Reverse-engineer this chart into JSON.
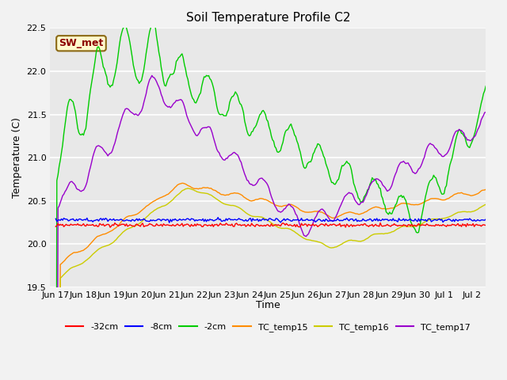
{
  "title": "Soil Temperature Profile C2",
  "xlabel": "Time",
  "ylabel": "Temperature (C)",
  "ylim": [
    19.5,
    22.5
  ],
  "annotation_text": "SW_met",
  "annotation_color": "#8B0000",
  "annotation_bg": "#FFFACD",
  "annotation_border": "#8B6914",
  "colors": {
    "-32cm": "#FF0000",
    "-8cm": "#0000FF",
    "-2cm": "#00CC00",
    "TC_temp15": "#FF8C00",
    "TC_temp16": "#CCCC00",
    "TC_temp17": "#9900CC"
  },
  "tick_labels": [
    "Jun 17",
    "Jun 18",
    "Jun 19",
    "Jun 20",
    "Jun 21",
    "Jun 22",
    "Jun 23",
    "Jun 24",
    "Jun 25",
    "Jun 26",
    "Jun 27",
    "Jun 28",
    "Jun 29",
    "Jun 30",
    "Jul 1",
    "Jul 2"
  ],
  "tick_positions": [
    0,
    1,
    2,
    3,
    4,
    5,
    6,
    7,
    8,
    9,
    10,
    11,
    12,
    13,
    14,
    15
  ],
  "bg_color": "#E8E8E8",
  "grid_color": "#FFFFFF",
  "fig_bg": "#F2F2F2"
}
